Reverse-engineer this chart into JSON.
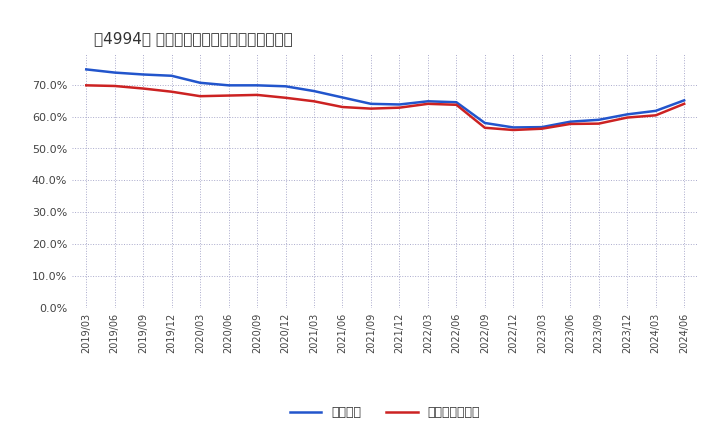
{
  "title": "［4994］ 固定比率、固定長期適合率の推移",
  "line1_label": "固定比率",
  "line2_label": "固定長期適合率",
  "line1_color": "#2255cc",
  "line2_color": "#cc2222",
  "background_color": "#ffffff",
  "grid_color": "#aaaacc",
  "ylim": [
    0.0,
    0.8
  ],
  "yticks": [
    0.0,
    0.1,
    0.2,
    0.3,
    0.4,
    0.5,
    0.6,
    0.7
  ],
  "x_labels": [
    "2019/03",
    "2019/06",
    "2019/09",
    "2019/12",
    "2020/03",
    "2020/06",
    "2020/09",
    "2020/12",
    "2021/03",
    "2021/06",
    "2021/09",
    "2021/12",
    "2022/03",
    "2022/06",
    "2022/09",
    "2022/12",
    "2023/03",
    "2023/06",
    "2023/09",
    "2023/12",
    "2024/03",
    "2024/06"
  ],
  "line1_values": [
    0.748,
    0.738,
    0.732,
    0.728,
    0.706,
    0.698,
    0.698,
    0.695,
    0.68,
    0.66,
    0.64,
    0.638,
    0.648,
    0.645,
    0.58,
    0.566,
    0.567,
    0.584,
    0.59,
    0.607,
    0.618,
    0.651
  ],
  "line2_values": [
    0.698,
    0.696,
    0.688,
    0.678,
    0.664,
    0.666,
    0.668,
    0.659,
    0.648,
    0.63,
    0.625,
    0.628,
    0.64,
    0.637,
    0.565,
    0.558,
    0.562,
    0.577,
    0.578,
    0.597,
    0.604,
    0.64
  ]
}
